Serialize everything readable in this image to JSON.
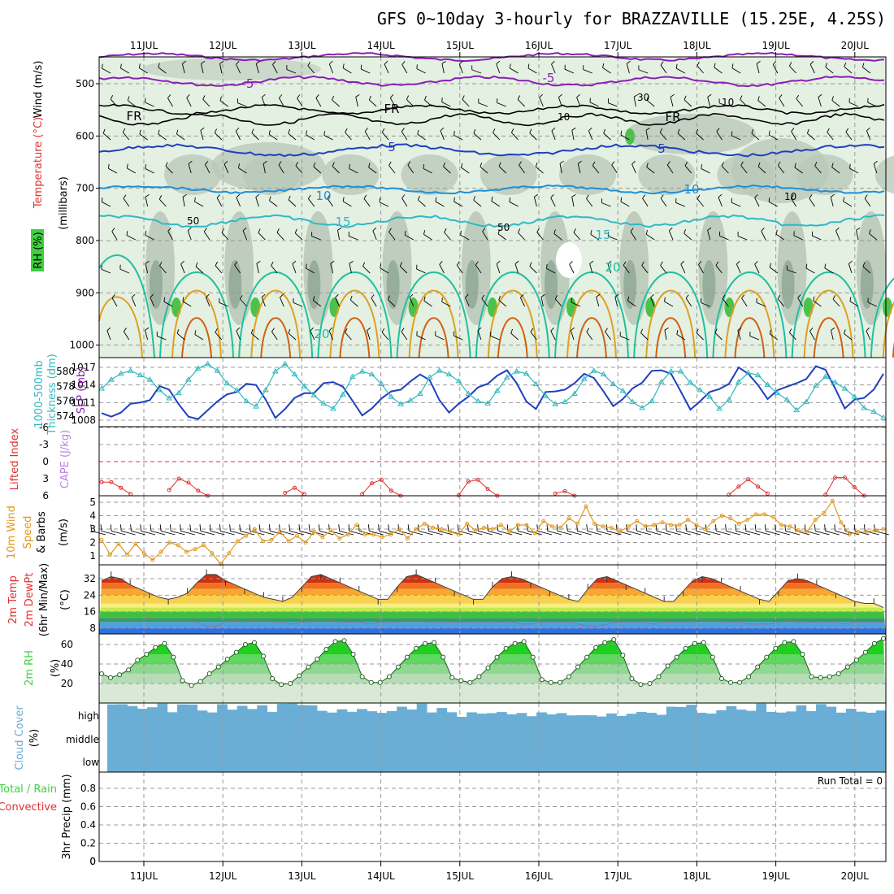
{
  "title": "GFS 0~10day 3-hourly for BRAZZAVILLE (15.25E, 4.25S)",
  "date_labels": [
    "11JUL",
    "12JUL",
    "13JUL",
    "14JUL",
    "15JUL",
    "16JUL",
    "17JUL",
    "18JUL",
    "19JUL",
    "20JUL"
  ],
  "colors": {
    "frame": "#000000",
    "grid": "#999999",
    "wind_line": "#1f3fbf",
    "purple": "#8a1fb5",
    "cyan": "#2fb8c8",
    "teal": "#20c0a0",
    "orange": "#e0a020",
    "dark_orange": "#d06010",
    "magenta": "#c0107a",
    "rh_light": "#e4f0e2",
    "rh_mid": "#b9c9b9",
    "rh_dark": "#7f9a85",
    "rh_green": "#4cc24c",
    "slp": "#1f3fbf",
    "thickness": "#30b8c0",
    "lifted": "#e03030",
    "wind10": "#e09a20",
    "rh2m": "#3fcf3f",
    "cloud": "#6aaed6",
    "precip": "#e03030"
  },
  "panel_labels": {
    "upper_rh": "RH (%)",
    "upper_temp": "Temperature (°C)",
    "upper_wind": "Wind (m/s)",
    "upper_units": "(millibars)",
    "slp": "SLP (mb)",
    "thickness_top": "1000-500mb",
    "thickness_bottom": "Thickness (dm)",
    "lifted": "Lifted Index",
    "cape": "CAPE (J/kg)",
    "wind10_a": "10m Wind",
    "wind10_b": "Speed",
    "wind10_c": "& Barbs",
    "wind10_units": "(m/s)",
    "temp_a": "2m Temp",
    "temp_b": "2m DewPt",
    "temp_c": "(6hr Min/Max)",
    "temp_units": "(°C)",
    "rh2m": "2m RH",
    "rh2m_units": "(%)",
    "cloud": "Cloud Cover",
    "cloud_units": "(%)",
    "precip_a": "Total / Rain",
    "precip_b": "Convective",
    "precip_c": "3hr Precip (mm)",
    "run_total": "Run Total = 0"
  },
  "contour_labels": {
    "purple": "-5",
    "freezing": "FR",
    "blue": "5",
    "c10": "10",
    "c15": "15",
    "c20": "20",
    "rh50": "50",
    "rh30": "30",
    "rh10": "10"
  },
  "chart_data": [
    {
      "type": "heatmap",
      "title": "Vertical cross-section: RH, Temperature, Wind",
      "ylabel": "(millibars)",
      "y_ticks": [
        500,
        600,
        700,
        800,
        900,
        1000
      ],
      "ylim": [
        1000,
        460
      ],
      "x": "3-hourly, 11JUL–20JUL",
      "isotherms_degC": [
        -5,
        0,
        5,
        10,
        15,
        20
      ],
      "rh_shading_pct": [
        10,
        30,
        50,
        70,
        90
      ]
    },
    {
      "type": "line",
      "title": "SLP (mb) / 1000-500mb Thickness (dm)",
      "y_ticks_left": [
        574,
        576,
        578,
        580
      ],
      "y_ticks_right": [
        1008,
        1011,
        1014,
        1017
      ],
      "series": [
        {
          "name": "SLP (mb)",
          "values": [
            1009.2,
            1008.6,
            1009.3,
            1010.8,
            1011.0,
            1011.4,
            1013.8,
            1013.2,
            1010.7,
            1008.6,
            1008.2,
            1009.7,
            1011.2,
            1012.4,
            1012.8,
            1014.2,
            1014.0,
            1011.5,
            1008.4,
            1009.9,
            1011.8,
            1012.6,
            1012.6,
            1014.3,
            1014.5,
            1013.7,
            1011.3,
            1008.8,
            1010.0,
            1011.7,
            1012.9,
            1013.2,
            1014.6,
            1015.8,
            1014.8,
            1011.4,
            1009.3,
            1010.8,
            1012.0,
            1013.6,
            1014.2,
            1015.6,
            1016.5,
            1014.3,
            1011.2,
            1009.9,
            1012.8,
            1012.9,
            1013.2,
            1014.3,
            1015.9,
            1015.2,
            1012.9,
            1010.4,
            1011.6,
            1013.4,
            1014.4,
            1016.4,
            1016.5,
            1015.9,
            1012.9,
            1009.8,
            1011.2,
            1012.8,
            1013.3,
            1014.2,
            1017.0,
            1015.9,
            1014.0,
            1011.6,
            1013.1,
            1013.7,
            1014.3,
            1015.0,
            1017.2,
            1016.6,
            1013.4,
            1010.0,
            1011.5,
            1011.8,
            1013.2,
            1015.9
          ]
        },
        {
          "name": "1000-500mb Thickness (dm)",
          "values": [
            577.7,
            578.9,
            579.7,
            580.1,
            579.5,
            578.9,
            577.5,
            576.4,
            577.1,
            578.9,
            580.4,
            581.0,
            580.1,
            578.4,
            577.5,
            576.0,
            575.3,
            577.5,
            580.0,
            581.0,
            579.6,
            578.0,
            576.8,
            575.7,
            575.0,
            576.9,
            579.3,
            580.0,
            579.6,
            578.3,
            576.6,
            575.6,
            576.1,
            577.0,
            579.2,
            580.1,
            579.6,
            578.7,
            577.0,
            576.0,
            575.7,
            577.4,
            579.2,
            580.0,
            579.7,
            578.3,
            576.7,
            575.6,
            575.9,
            577.0,
            579.0,
            580.1,
            579.6,
            578.3,
            577.4,
            575.9,
            575.1,
            576.0,
            578.6,
            580.0,
            580.0,
            578.5,
            577.5,
            576.6,
            575.0,
            576.2,
            578.6,
            579.8,
            579.5,
            578.2,
            577.1,
            576.2,
            574.8,
            575.9,
            578.1,
            579.3,
            578.5,
            577.7,
            576.6,
            575.1,
            574.6,
            573.8
          ]
        }
      ]
    },
    {
      "type": "line",
      "title": "Lifted Index / CAPE",
      "y_ticks": [
        -6,
        -3,
        0,
        3,
        6
      ],
      "ylim": [
        -6,
        6
      ],
      "series": [
        {
          "name": "Lifted Index",
          "values": [
            3.6,
            3.6,
            4.6,
            5.7,
            null,
            null,
            null,
            5.0,
            3.0,
            3.7,
            5.1,
            6.0,
            null,
            null,
            null,
            null,
            null,
            null,
            null,
            5.5,
            4.6,
            5.7,
            null,
            null,
            null,
            null,
            null,
            5.7,
            3.8,
            3.2,
            5.1,
            6.0,
            null,
            null,
            null,
            null,
            null,
            5.9,
            3.5,
            3.2,
            4.8,
            6.0,
            null,
            null,
            null,
            null,
            null,
            5.6,
            5.2,
            6.0,
            null,
            null,
            null,
            null,
            null,
            null,
            null,
            null,
            null,
            null,
            null,
            null,
            null,
            null,
            null,
            5.8,
            4.4,
            3.1,
            4.4,
            5.6,
            null,
            null,
            null,
            null,
            null,
            5.8,
            2.8,
            2.8,
            4.5,
            6.0,
            null,
            null
          ]
        }
      ]
    },
    {
      "type": "line",
      "title": "10m Wind Speed & Barbs",
      "ylabel": "(m/s)",
      "y_ticks": [
        1,
        2,
        3,
        4,
        5
      ],
      "series": [
        {
          "name": "10m Wind Speed",
          "values": [
            2.2,
            1.1,
            1.9,
            1.1,
            1.9,
            1.2,
            0.7,
            1.3,
            2.0,
            1.8,
            1.3,
            1.5,
            1.8,
            1.2,
            0.4,
            1.2,
            2.1,
            2.5,
            3.0,
            2.1,
            2.2,
            2.8,
            2.1,
            2.5,
            2.0,
            2.8,
            2.4,
            2.9,
            2.3,
            2.6,
            3.3,
            2.6,
            2.6,
            2.4,
            2.6,
            3.0,
            2.3,
            3.0,
            3.4,
            3.1,
            3.0,
            2.8,
            2.6,
            3.4,
            2.9,
            3.1,
            3.0,
            3.3,
            2.8,
            3.3,
            3.3,
            2.7,
            3.6,
            3.2,
            3.1,
            3.8,
            3.4,
            4.7,
            3.4,
            3.2,
            3.1,
            2.8,
            3.2,
            3.6,
            3.2,
            3.3,
            3.5,
            3.3,
            3.3,
            3.7,
            3.3,
            3.0,
            3.6,
            4.0,
            3.8,
            3.4,
            3.7,
            4.1,
            4.1,
            3.9,
            3.3,
            3.2,
            2.9,
            2.8,
            3.7,
            4.2,
            5.1,
            3.5,
            2.6,
            2.8,
            2.8,
            2.9,
            3.0
          ]
        }
      ]
    },
    {
      "type": "area",
      "title": "2m Temp / 2m DewPt",
      "ylabel": "(°C)",
      "y_ticks": [
        8,
        16,
        24,
        32
      ],
      "series": [
        {
          "name": "2m Temp",
          "values": [
            31,
            33,
            32,
            29,
            27,
            25,
            23,
            22,
            23,
            25,
            30,
            34,
            34,
            31,
            29,
            27,
            25,
            23,
            22,
            21,
            23,
            28,
            33,
            34,
            32,
            30,
            28,
            26,
            24,
            22,
            22,
            28,
            33,
            34,
            32,
            30,
            28,
            26,
            24,
            22,
            22,
            28,
            32,
            33,
            32,
            30,
            28,
            26,
            24,
            22,
            21,
            27,
            32,
            33,
            31,
            29,
            27,
            25,
            23,
            21,
            21,
            26,
            31,
            33,
            32,
            30,
            28,
            26,
            24,
            22,
            21,
            26,
            31,
            32,
            31,
            29,
            27,
            25,
            23,
            21,
            20,
            20,
            18
          ]
        },
        {
          "name": "2m DewPt",
          "values": [
            12,
            12,
            13,
            12,
            12,
            13,
            12,
            12,
            12,
            12,
            11,
            9,
            9,
            11,
            12,
            11,
            12,
            12,
            11,
            11,
            10,
            11,
            11,
            12,
            12,
            11,
            11,
            11,
            10,
            11,
            11,
            11,
            12,
            12,
            11,
            11,
            11,
            11,
            11,
            11,
            11,
            11,
            11,
            11,
            10,
            10,
            11,
            11,
            11,
            11,
            10,
            9,
            9,
            10,
            11,
            11,
            11,
            11,
            10,
            11,
            11,
            11,
            11,
            12,
            12,
            11,
            11,
            11,
            10,
            10,
            10,
            11,
            12,
            11,
            11,
            11,
            11,
            11,
            10,
            11,
            11,
            11,
            11
          ]
        }
      ]
    },
    {
      "type": "area",
      "title": "2m RH",
      "ylabel": "(%)",
      "y_ticks": [
        20,
        40,
        60
      ],
      "series": [
        {
          "name": "2m RH",
          "values": [
            30,
            26,
            29,
            34,
            44,
            50,
            57,
            61,
            47,
            23,
            18,
            22,
            30,
            37,
            45,
            52,
            60,
            62,
            48,
            25,
            19,
            20,
            28,
            37,
            45,
            55,
            63,
            64,
            50,
            27,
            21,
            21,
            27,
            37,
            47,
            56,
            61,
            62,
            47,
            26,
            23,
            21,
            27,
            36,
            47,
            56,
            61,
            63,
            47,
            24,
            21,
            21,
            27,
            37,
            47,
            57,
            62,
            65,
            49,
            25,
            19,
            20,
            27,
            38,
            47,
            56,
            61,
            62,
            47,
            25,
            21,
            21,
            27,
            37,
            47,
            56,
            62,
            63,
            50,
            27,
            26,
            27,
            30,
            37,
            44,
            52,
            61,
            66
          ]
        }
      ]
    },
    {
      "type": "bar",
      "title": "Cloud Cover",
      "categories": [
        "high",
        "middle",
        "low"
      ],
      "ylabel": "(%)"
    },
    {
      "type": "bar",
      "title": "3hr Precip (mm)",
      "y_ticks": [
        0,
        0.2,
        0.4,
        0.6,
        0.8
      ],
      "ylim": [
        0,
        0.9
      ],
      "series": [
        {
          "name": "Total / Rain",
          "values": []
        },
        {
          "name": "Convective",
          "values": []
        }
      ]
    }
  ]
}
